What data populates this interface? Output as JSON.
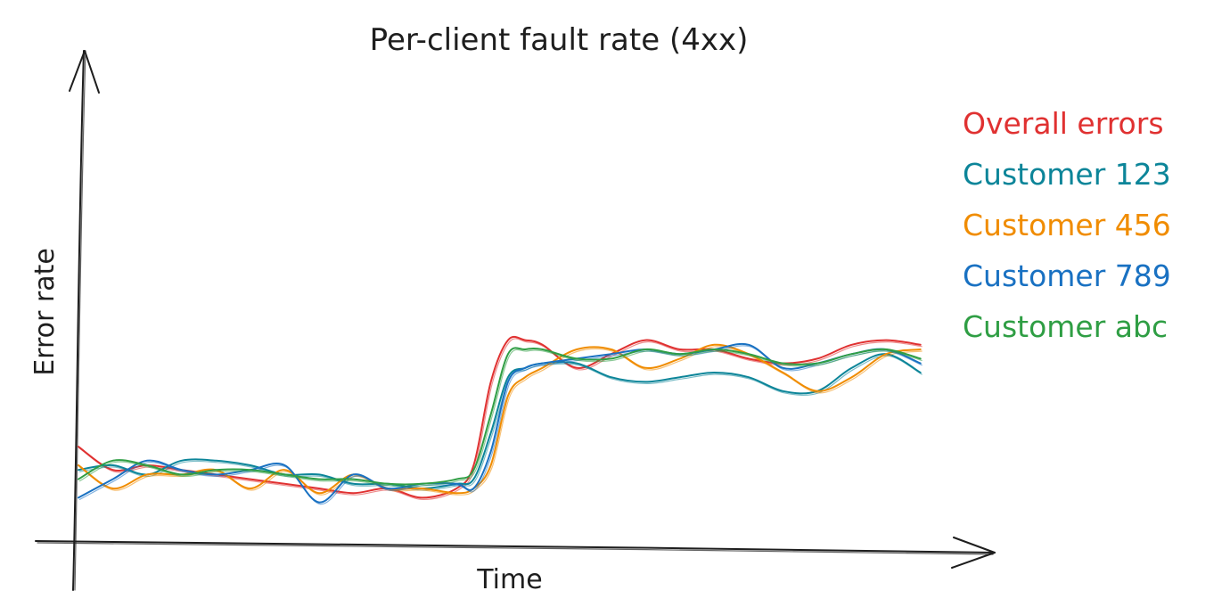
{
  "chart_data": {
    "type": "line",
    "title": "Per-client fault rate (4xx)",
    "xlabel": "Time",
    "ylabel": "Error rate",
    "x_ticks_shown": false,
    "y_ticks_shown": false,
    "grid": false,
    "legend_position": "right",
    "xlim": [
      0,
      100
    ],
    "ylim": [
      0,
      100
    ],
    "x": [
      0,
      4,
      8,
      12,
      16,
      20,
      24,
      28,
      32,
      36,
      40,
      44,
      46,
      48,
      50,
      52,
      54,
      58,
      62,
      66,
      70,
      74,
      78,
      82,
      86,
      90,
      94,
      98
    ],
    "series": [
      {
        "name": "Overall errors",
        "color": "#e03131",
        "values": [
          19,
          14,
          15,
          14,
          13,
          12,
          11,
          10,
          9,
          10,
          8,
          10,
          15,
          33,
          42,
          42,
          41,
          36,
          39,
          42,
          40,
          40,
          38,
          37,
          38,
          41,
          42,
          41
        ]
      },
      {
        "name": "Customer 123",
        "color": "#0c8599",
        "values": [
          14,
          15,
          13,
          16,
          16,
          15,
          13,
          13,
          11,
          11,
          10,
          11,
          12,
          22,
          34,
          36,
          37,
          37,
          34,
          33,
          34,
          35,
          34,
          31,
          31,
          36,
          39,
          35
        ]
      },
      {
        "name": "Customer 456",
        "color": "#f08c00",
        "values": [
          15,
          10,
          13,
          13,
          14,
          10,
          14,
          9,
          13,
          10,
          10,
          9,
          10,
          15,
          30,
          34,
          36,
          40,
          40,
          36,
          38,
          41,
          39,
          35,
          31,
          34,
          39,
          40
        ]
      },
      {
        "name": "Customer 789",
        "color": "#1971c2",
        "values": [
          8,
          12,
          16,
          14,
          13,
          14,
          15,
          7,
          13,
          10,
          11,
          11,
          10,
          18,
          33,
          36,
          37,
          38,
          39,
          40,
          39,
          40,
          41,
          36,
          37,
          39,
          40,
          37
        ]
      },
      {
        "name": "Customer abc",
        "color": "#2f9e44",
        "values": [
          12,
          16,
          15,
          13,
          14,
          14,
          13,
          12,
          12,
          11,
          11,
          12,
          14,
          26,
          39,
          40,
          40,
          38,
          38,
          40,
          39,
          40,
          39,
          37,
          37,
          39,
          40,
          38
        ]
      }
    ]
  }
}
